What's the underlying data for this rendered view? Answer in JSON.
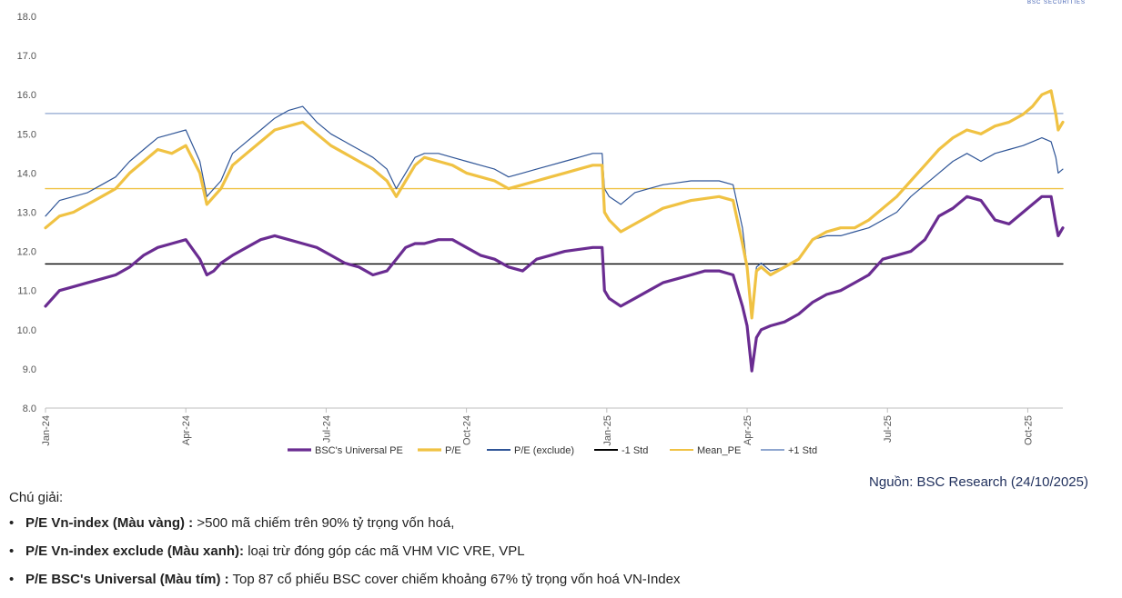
{
  "logo_text": "BSC SECURITIES",
  "chart_data": {
    "type": "line",
    "ylim": [
      8.0,
      18.0
    ],
    "yticks": [
      "8.0",
      "9.0",
      "10.0",
      "11.0",
      "12.0",
      "13.0",
      "14.0",
      "15.0",
      "16.0",
      "17.0",
      "18.0"
    ],
    "xdomain": [
      0,
      21.75
    ],
    "xticks": [
      {
        "label": "Jan-24",
        "x": 0
      },
      {
        "label": "Apr-24",
        "x": 3
      },
      {
        "label": "Jul-24",
        "x": 6
      },
      {
        "label": "Oct-24",
        "x": 9
      },
      {
        "label": "Jan-25",
        "x": 12
      },
      {
        "label": "Apr-25",
        "x": 15
      },
      {
        "label": "Jul-25",
        "x": 18
      },
      {
        "label": "Oct-25",
        "x": 21
      }
    ],
    "series": [
      {
        "name": "BSC's Universal PE",
        "color": "#6a2c91",
        "width": 3.2,
        "x": [
          0,
          0.3,
          0.6,
          0.9,
          1.2,
          1.5,
          1.8,
          2.1,
          2.4,
          2.7,
          3.0,
          3.3,
          3.45,
          3.6,
          3.75,
          4.0,
          4.3,
          4.6,
          4.9,
          5.2,
          5.5,
          5.8,
          6.1,
          6.4,
          6.7,
          7.0,
          7.3,
          7.5,
          7.7,
          7.9,
          8.1,
          8.4,
          8.7,
          9.0,
          9.3,
          9.6,
          9.9,
          10.2,
          10.5,
          10.8,
          11.1,
          11.4,
          11.7,
          11.9,
          11.95,
          12.05,
          12.3,
          12.6,
          12.9,
          13.2,
          13.5,
          13.8,
          14.1,
          14.4,
          14.7,
          14.9,
          15.0,
          15.1,
          15.2,
          15.3,
          15.5,
          15.8,
          16.1,
          16.4,
          16.7,
          17.0,
          17.3,
          17.6,
          17.9,
          18.2,
          18.5,
          18.8,
          19.1,
          19.4,
          19.7,
          20.0,
          20.3,
          20.6,
          20.9,
          21.1,
          21.3,
          21.5,
          21.6,
          21.65,
          21.75
        ],
        "y": [
          10.6,
          11.0,
          11.1,
          11.2,
          11.3,
          11.4,
          11.6,
          11.9,
          12.1,
          12.2,
          12.3,
          11.8,
          11.4,
          11.5,
          11.7,
          11.9,
          12.1,
          12.3,
          12.4,
          12.3,
          12.2,
          12.1,
          11.9,
          11.7,
          11.6,
          11.4,
          11.5,
          11.8,
          12.1,
          12.2,
          12.2,
          12.3,
          12.3,
          12.1,
          11.9,
          11.8,
          11.6,
          11.5,
          11.8,
          11.9,
          12.0,
          12.05,
          12.1,
          12.1,
          11.0,
          10.8,
          10.6,
          10.8,
          11.0,
          11.2,
          11.3,
          11.4,
          11.5,
          11.5,
          11.4,
          10.6,
          10.1,
          8.95,
          9.8,
          10.0,
          10.1,
          10.2,
          10.4,
          10.7,
          10.9,
          11.0,
          11.2,
          11.4,
          11.8,
          11.9,
          12.0,
          12.3,
          12.9,
          13.1,
          13.4,
          13.3,
          12.8,
          12.7,
          13.0,
          13.2,
          13.4,
          13.4,
          12.7,
          12.4,
          12.6
        ]
      },
      {
        "name": "P/E",
        "color": "#f0c243",
        "width": 3.2,
        "x": [
          0,
          0.3,
          0.6,
          0.9,
          1.2,
          1.5,
          1.8,
          2.1,
          2.4,
          2.7,
          3.0,
          3.3,
          3.45,
          3.6,
          3.75,
          4.0,
          4.3,
          4.6,
          4.9,
          5.2,
          5.5,
          5.8,
          6.1,
          6.4,
          6.7,
          7.0,
          7.3,
          7.5,
          7.7,
          7.9,
          8.1,
          8.4,
          8.7,
          9.0,
          9.3,
          9.6,
          9.9,
          10.2,
          10.5,
          10.8,
          11.1,
          11.4,
          11.7,
          11.9,
          11.95,
          12.05,
          12.3,
          12.6,
          12.9,
          13.2,
          13.5,
          13.8,
          14.1,
          14.4,
          14.7,
          14.9,
          15.0,
          15.1,
          15.2,
          15.3,
          15.5,
          15.8,
          16.1,
          16.4,
          16.7,
          17.0,
          17.3,
          17.6,
          17.9,
          18.2,
          18.5,
          18.8,
          19.1,
          19.4,
          19.7,
          20.0,
          20.3,
          20.6,
          20.9,
          21.1,
          21.3,
          21.5,
          21.6,
          21.65,
          21.75
        ],
        "y": [
          12.6,
          12.9,
          13.0,
          13.2,
          13.4,
          13.6,
          14.0,
          14.3,
          14.6,
          14.5,
          14.7,
          14.0,
          13.2,
          13.4,
          13.6,
          14.2,
          14.5,
          14.8,
          15.1,
          15.2,
          15.3,
          15.0,
          14.7,
          14.5,
          14.3,
          14.1,
          13.8,
          13.4,
          13.8,
          14.2,
          14.4,
          14.3,
          14.2,
          14.0,
          13.9,
          13.8,
          13.6,
          13.7,
          13.8,
          13.9,
          14.0,
          14.1,
          14.2,
          14.2,
          13.0,
          12.8,
          12.5,
          12.7,
          12.9,
          13.1,
          13.2,
          13.3,
          13.35,
          13.4,
          13.3,
          12.2,
          11.6,
          10.3,
          11.5,
          11.6,
          11.4,
          11.6,
          11.8,
          12.3,
          12.5,
          12.6,
          12.6,
          12.8,
          13.1,
          13.4,
          13.8,
          14.2,
          14.6,
          14.9,
          15.1,
          15.0,
          15.2,
          15.3,
          15.5,
          15.7,
          16.0,
          16.1,
          15.5,
          15.1,
          15.3
        ]
      },
      {
        "name": "P/E (exclude)",
        "color": "#2f5597",
        "width": 1.2,
        "x": [
          0,
          0.3,
          0.6,
          0.9,
          1.2,
          1.5,
          1.8,
          2.1,
          2.4,
          2.7,
          3.0,
          3.3,
          3.45,
          3.6,
          3.75,
          4.0,
          4.3,
          4.6,
          4.9,
          5.2,
          5.5,
          5.8,
          6.1,
          6.4,
          6.7,
          7.0,
          7.3,
          7.5,
          7.7,
          7.9,
          8.1,
          8.4,
          8.7,
          9.0,
          9.3,
          9.6,
          9.9,
          10.2,
          10.5,
          10.8,
          11.1,
          11.4,
          11.7,
          11.9,
          11.95,
          12.05,
          12.3,
          12.6,
          12.9,
          13.2,
          13.5,
          13.8,
          14.1,
          14.4,
          14.7,
          14.9,
          15.0,
          15.1,
          15.2,
          15.3,
          15.5,
          15.8,
          16.1,
          16.4,
          16.7,
          17.0,
          17.3,
          17.6,
          17.9,
          18.2,
          18.5,
          18.8,
          19.1,
          19.4,
          19.7,
          20.0,
          20.3,
          20.6,
          20.9,
          21.1,
          21.3,
          21.5,
          21.6,
          21.65,
          21.75
        ],
        "y": [
          12.9,
          13.3,
          13.4,
          13.5,
          13.7,
          13.9,
          14.3,
          14.6,
          14.9,
          15.0,
          15.1,
          14.3,
          13.4,
          13.6,
          13.8,
          14.5,
          14.8,
          15.1,
          15.4,
          15.6,
          15.7,
          15.3,
          15.0,
          14.8,
          14.6,
          14.4,
          14.1,
          13.6,
          14.0,
          14.4,
          14.5,
          14.5,
          14.4,
          14.3,
          14.2,
          14.1,
          13.9,
          14.0,
          14.1,
          14.2,
          14.3,
          14.4,
          14.5,
          14.5,
          13.6,
          13.4,
          13.2,
          13.5,
          13.6,
          13.7,
          13.75,
          13.8,
          13.8,
          13.8,
          13.7,
          12.6,
          11.6,
          10.4,
          11.6,
          11.7,
          11.5,
          11.6,
          11.8,
          12.3,
          12.4,
          12.4,
          12.5,
          12.6,
          12.8,
          13.0,
          13.4,
          13.7,
          14.0,
          14.3,
          14.5,
          14.3,
          14.5,
          14.6,
          14.7,
          14.8,
          14.9,
          14.8,
          14.4,
          14.0,
          14.1
        ]
      },
      {
        "name": "-1 Std",
        "color": "#000000",
        "width": 1.4,
        "x": [
          0,
          21.75
        ],
        "y": [
          11.68,
          11.68
        ]
      },
      {
        "name": "Mean_PE",
        "color": "#f0c243",
        "width": 1.4,
        "x": [
          0,
          21.75
        ],
        "y": [
          13.6,
          13.6
        ]
      },
      {
        "name": "+1 Std",
        "color": "#8fa6cf",
        "width": 1.2,
        "x": [
          0,
          21.75
        ],
        "y": [
          15.52,
          15.52
        ]
      }
    ]
  },
  "source": "Nguồn: BSC Research (24/10/2025)",
  "notes": {
    "title": "Chú giải:",
    "bullet": "•",
    "items": [
      {
        "bold": "P/E Vn-index (Màu vàng) :",
        "text": " >500 mã chiếm trên 90% tỷ trọng vốn hoá,"
      },
      {
        "bold": "P/E Vn-index exclude (Màu xanh):",
        "text": " loại trừ đóng góp các mã VHM VIC VRE, VPL"
      },
      {
        "bold": "P/E BSC's Universal (Màu tím) :",
        "text": " Top 87 cổ phiếu BSC cover chiếm khoảng 67% tỷ trọng vốn hoá VN-Index"
      }
    ]
  }
}
